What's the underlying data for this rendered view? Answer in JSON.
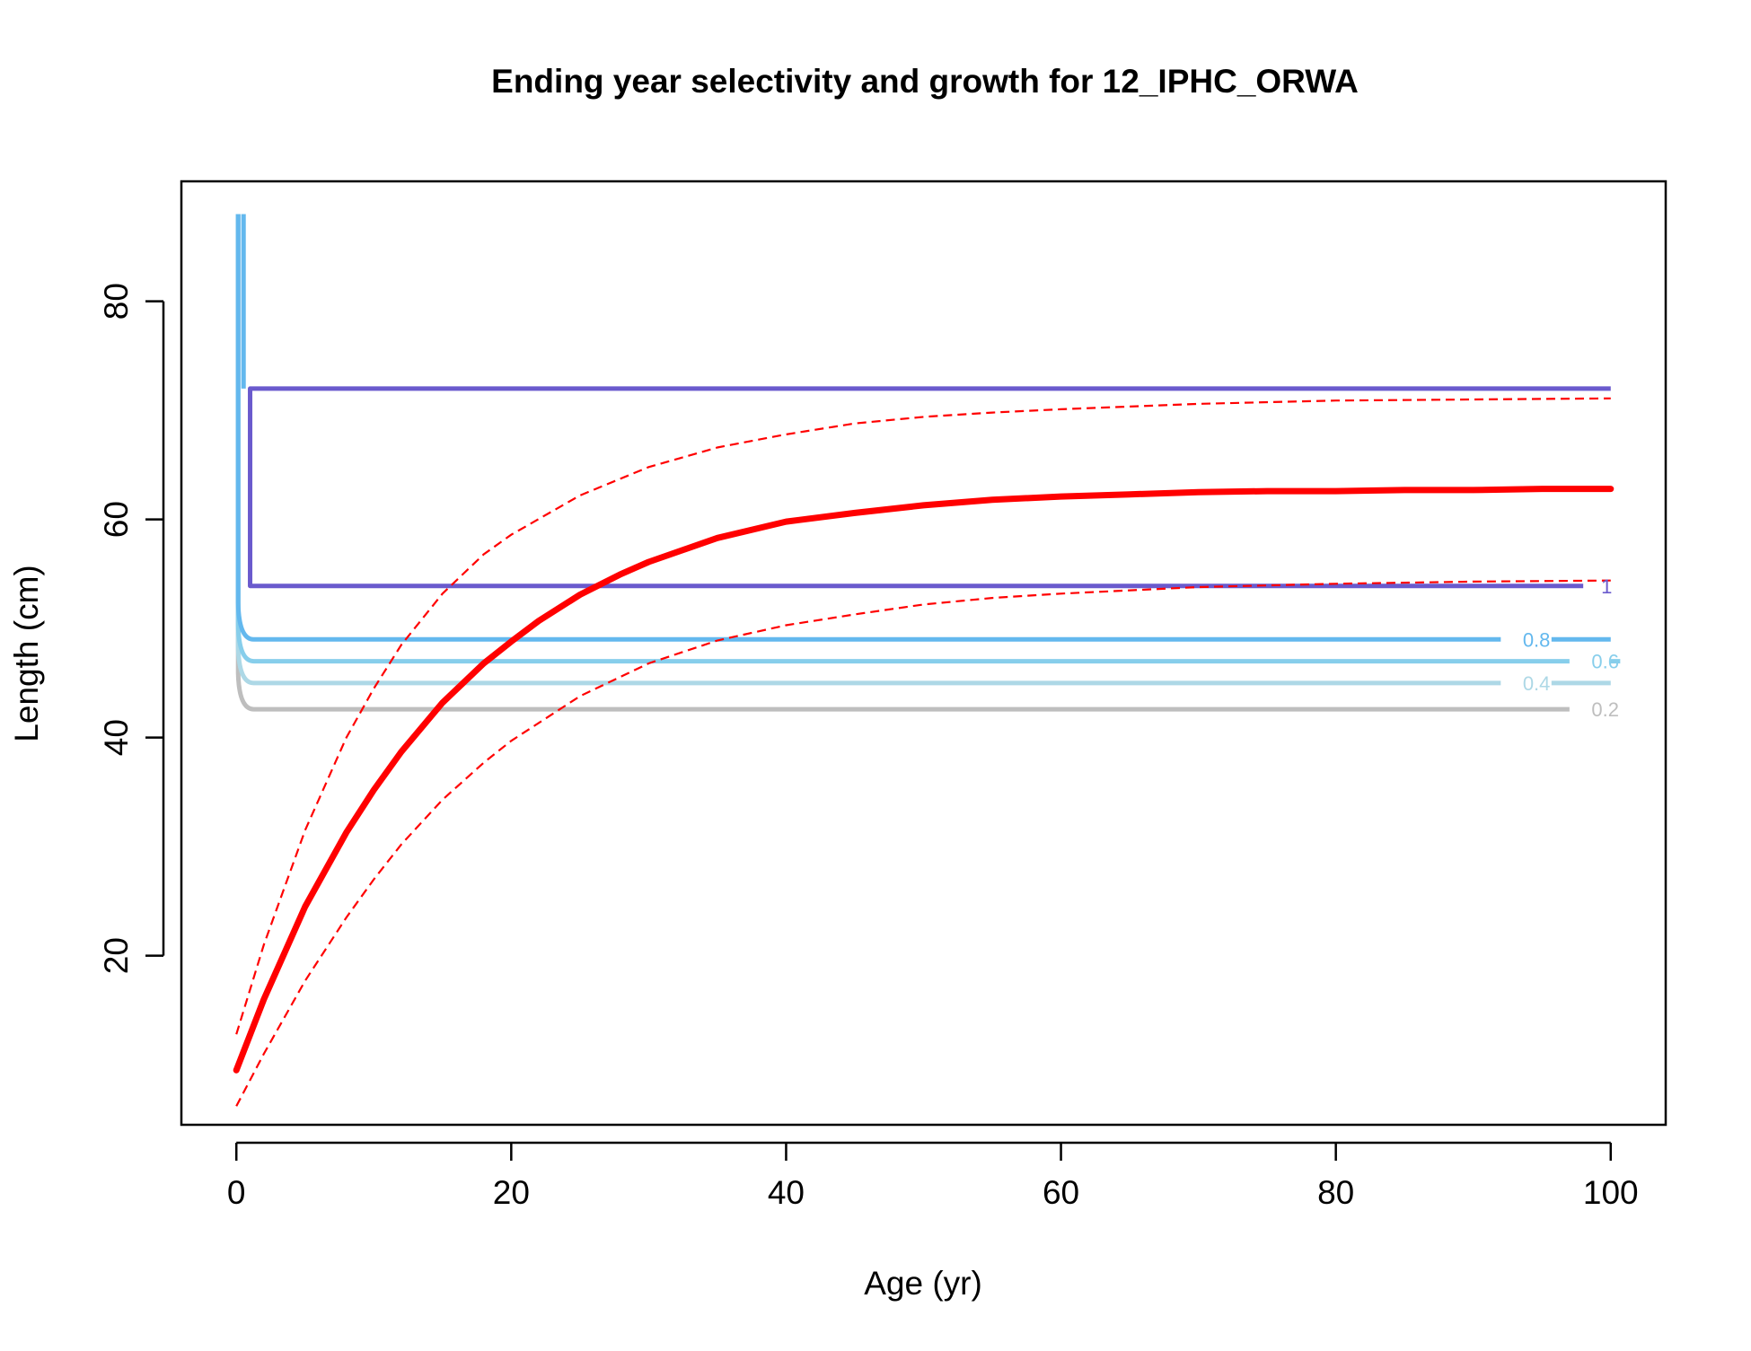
{
  "chart_data": {
    "type": "line",
    "title": "Ending year selectivity and growth for 12_IPHC_ORWA",
    "xlabel": "Age (yr)",
    "ylabel": "Length (cm)",
    "xlim": [
      -4,
      104
    ],
    "ylim": [
      4.5,
      91
    ],
    "xticks": [
      0,
      20,
      40,
      60,
      80,
      100
    ],
    "yticks": [
      20,
      40,
      60,
      80
    ],
    "grid": false,
    "legend": "none",
    "growth": {
      "mean": {
        "color": "#ff0000",
        "style": "solid",
        "x": [
          0,
          2,
          5,
          8,
          10,
          12,
          15,
          18,
          20,
          22,
          25,
          28,
          30,
          35,
          40,
          45,
          50,
          55,
          60,
          65,
          70,
          75,
          80,
          85,
          90,
          95,
          100
        ],
        "y": [
          9.5,
          16.0,
          24.5,
          31.3,
          35.2,
          38.7,
          43.2,
          46.8,
          48.8,
          50.7,
          53.1,
          55.0,
          56.1,
          58.3,
          59.8,
          60.6,
          61.3,
          61.8,
          62.1,
          62.3,
          62.5,
          62.6,
          62.6,
          62.7,
          62.7,
          62.8,
          62.8
        ]
      },
      "upper": {
        "color": "#ff0000",
        "style": "dashed",
        "x": [
          0,
          2,
          5,
          8,
          10,
          12,
          15,
          18,
          20,
          25,
          30,
          35,
          40,
          45,
          50,
          55,
          60,
          70,
          80,
          90,
          100
        ],
        "y": [
          12.8,
          21.0,
          31.5,
          40.0,
          44.5,
          48.5,
          53.2,
          56.8,
          58.6,
          62.2,
          64.8,
          66.6,
          67.8,
          68.8,
          69.4,
          69.8,
          70.1,
          70.6,
          70.9,
          71.0,
          71.1
        ]
      },
      "lower": {
        "color": "#ff0000",
        "style": "dashed",
        "x": [
          0,
          2,
          5,
          8,
          10,
          12,
          15,
          18,
          20,
          25,
          30,
          35,
          40,
          45,
          50,
          55,
          60,
          70,
          80,
          90,
          100
        ],
        "y": [
          6.2,
          11.0,
          17.7,
          23.5,
          27.0,
          30.2,
          34.3,
          37.7,
          39.7,
          43.8,
          46.8,
          48.9,
          50.3,
          51.3,
          52.2,
          52.8,
          53.2,
          53.8,
          54.1,
          54.3,
          54.4
        ]
      }
    },
    "selectivity_contours": [
      {
        "level": "1",
        "color": "#6a5acd",
        "region": "closed",
        "x_left": 1,
        "x_right": 98,
        "x_end": 100,
        "y_low": 53.9,
        "y_high": 72.0,
        "label_x": 99.3,
        "label_y": 53.9
      },
      {
        "level": "0.8",
        "color": "#63b8ee",
        "region": "open",
        "x_left": 1,
        "x_right": 92,
        "x_end": 100,
        "y_low": 49.0,
        "label_x": 93.6,
        "label_y": 49.0
      },
      {
        "level": "0.6",
        "color": "#87ceeb",
        "region": "open",
        "x_left": 1,
        "x_right": 97,
        "x_end": 100,
        "y_low": 47.0,
        "label_x": 98.6,
        "label_y": 47.0
      },
      {
        "level": "0.4",
        "color": "#add8e6",
        "region": "open",
        "x_left": 1,
        "x_right": 92,
        "x_end": 100,
        "y_low": 45.0,
        "label_x": 93.6,
        "label_y": 45.0
      },
      {
        "level": "0.2",
        "color": "#bebebe",
        "region": "open",
        "x_left": 1,
        "x_right": 97,
        "x_end": 97,
        "y_low": 42.6,
        "label_x": 98.6,
        "label_y": 42.6
      }
    ],
    "y_max_contour": 88
  }
}
